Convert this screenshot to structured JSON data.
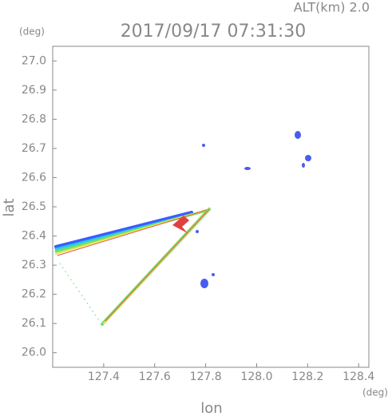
{
  "chart_data": {
    "type": "radar-map",
    "title": "2017/09/17 07:31:30",
    "subtitle": "ALT(km) 2.0",
    "x_label": "lon",
    "y_label": "lat",
    "x_unit": "(deg)",
    "y_unit": "(deg)",
    "xlim": [
      127.2,
      128.44
    ],
    "ylim": [
      25.95,
      27.05
    ],
    "xticks": [
      127.4,
      127.6,
      127.8,
      {
        "value": 128.0,
        "label": "128.0"
      },
      128.2,
      128.4
    ],
    "yticks": [
      {
        "value": 26.0,
        "label": "26.0"
      },
      26.1,
      26.2,
      26.3,
      26.4,
      26.5,
      26.6,
      26.7,
      26.8,
      26.9,
      {
        "value": 27.0,
        "label": "27.0"
      }
    ]
  }
}
